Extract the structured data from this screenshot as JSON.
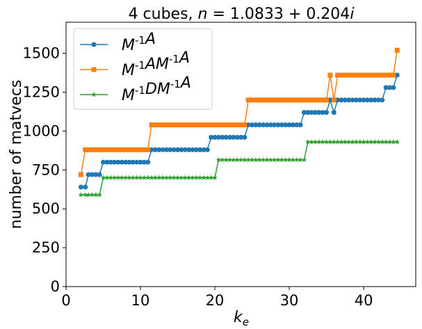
{
  "chart_data": {
    "type": "line",
    "title": "4 cubes, n = 1.0833 + 0.204i",
    "xlabel": "k_e",
    "ylabel": "number of matvecs",
    "xlim": [
      0,
      47
    ],
    "ylim": [
      0,
      1700
    ],
    "xticks": [
      0,
      10,
      20,
      30,
      40
    ],
    "yticks": [
      0,
      250,
      500,
      750,
      1000,
      1250,
      1500
    ],
    "legend": "top-left",
    "grid": false,
    "colors": {
      "s0": "#1f77b4",
      "s1": "#ff7f0e",
      "s2": "#2ca02c"
    },
    "series": [
      {
        "name": "M^{-1}A",
        "name_plain": "M−1A",
        "marker": "circle",
        "color": "#1f77b4",
        "x": [
          2.0,
          2.6,
          3.0,
          3.5,
          4.0,
          4.5,
          5.0,
          5.5,
          6.0,
          6.5,
          7.0,
          7.5,
          8.0,
          8.5,
          9.0,
          9.5,
          10.0,
          10.5,
          11.0,
          11.5,
          12.0,
          12.5,
          13.0,
          13.5,
          14.0,
          14.5,
          15.0,
          15.5,
          16.0,
          16.5,
          17.0,
          17.5,
          18.0,
          18.5,
          19.0,
          19.5,
          20.0,
          20.5,
          21.0,
          21.5,
          22.0,
          22.5,
          23.0,
          23.5,
          24.0,
          24.5,
          25.0,
          25.5,
          26.0,
          26.5,
          27.0,
          27.5,
          28.0,
          28.5,
          29.0,
          29.5,
          30.0,
          30.5,
          31.0,
          31.5,
          32.0,
          32.5,
          33.0,
          33.5,
          34.0,
          34.5,
          35.0,
          35.5,
          36.0,
          36.5,
          37.0,
          37.5,
          38.0,
          38.5,
          39.0,
          39.5,
          40.0,
          40.5,
          41.0,
          41.5,
          42.0,
          42.5,
          43.0,
          43.5,
          44.0,
          44.5
        ],
        "y": [
          640,
          640,
          720,
          720,
          720,
          720,
          800,
          800,
          800,
          800,
          800,
          800,
          800,
          800,
          800,
          800,
          800,
          800,
          800,
          880,
          880,
          880,
          880,
          880,
          880,
          880,
          880,
          880,
          880,
          880,
          880,
          880,
          880,
          880,
          880,
          960,
          960,
          960,
          960,
          960,
          960,
          960,
          960,
          960,
          960,
          1040,
          1040,
          1040,
          1040,
          1040,
          1040,
          1040,
          1040,
          1040,
          1040,
          1040,
          1040,
          1040,
          1040,
          1040,
          1120,
          1120,
          1120,
          1120,
          1120,
          1120,
          1120,
          1200,
          1120,
          1200,
          1200,
          1200,
          1200,
          1200,
          1200,
          1200,
          1200,
          1200,
          1200,
          1200,
          1200,
          1200,
          1280,
          1280,
          1280,
          1360
        ]
      },
      {
        "name": "M^{-1}AM^{-1}A",
        "name_plain": "M−1AM−1A",
        "marker": "square",
        "color": "#ff7f0e",
        "x": [
          2.0,
          2.6,
          3.0,
          3.5,
          4.0,
          4.5,
          5.0,
          5.5,
          6.0,
          6.5,
          7.0,
          7.5,
          8.0,
          8.5,
          9.0,
          9.5,
          10.0,
          10.5,
          11.0,
          11.5,
          12.0,
          12.5,
          13.0,
          13.5,
          14.0,
          14.5,
          15.0,
          15.5,
          16.0,
          16.5,
          17.0,
          17.5,
          18.0,
          18.5,
          19.0,
          19.5,
          20.0,
          20.5,
          21.0,
          21.5,
          22.0,
          22.5,
          23.0,
          23.5,
          24.0,
          24.5,
          25.0,
          25.5,
          26.0,
          26.5,
          27.0,
          27.5,
          28.0,
          28.5,
          29.0,
          29.5,
          30.0,
          30.5,
          31.0,
          31.5,
          32.0,
          32.5,
          33.0,
          33.5,
          34.0,
          34.5,
          35.0,
          35.5,
          36.0,
          36.5,
          37.0,
          37.5,
          38.0,
          38.5,
          39.0,
          39.5,
          40.0,
          40.5,
          41.0,
          41.5,
          42.0,
          42.5,
          43.0,
          43.5,
          44.0,
          44.5
        ],
        "y": [
          720,
          880,
          880,
          880,
          880,
          880,
          880,
          880,
          880,
          880,
          880,
          880,
          880,
          880,
          880,
          880,
          880,
          880,
          880,
          1040,
          1040,
          1040,
          1040,
          1040,
          1040,
          1040,
          1040,
          1040,
          1040,
          1040,
          1040,
          1040,
          1040,
          1040,
          1040,
          1040,
          1040,
          1040,
          1040,
          1040,
          1040,
          1040,
          1040,
          1040,
          1040,
          1200,
          1200,
          1200,
          1200,
          1200,
          1200,
          1200,
          1200,
          1200,
          1200,
          1200,
          1200,
          1200,
          1200,
          1200,
          1200,
          1200,
          1200,
          1200,
          1200,
          1200,
          1200,
          1360,
          1200,
          1360,
          1360,
          1360,
          1360,
          1360,
          1360,
          1360,
          1360,
          1360,
          1360,
          1360,
          1360,
          1360,
          1360,
          1360,
          1360,
          1520
        ]
      },
      {
        "name": "M^{-1}DM^{-1}A",
        "name_plain": "M−1DM−1A",
        "marker": "star",
        "color": "#2ca02c",
        "x": [
          2.0,
          2.6,
          3.0,
          3.5,
          4.0,
          4.5,
          5.0,
          5.5,
          6.0,
          6.5,
          7.0,
          7.5,
          8.0,
          8.5,
          9.0,
          9.5,
          10.0,
          10.5,
          11.0,
          11.5,
          12.0,
          12.5,
          13.0,
          13.5,
          14.0,
          14.5,
          15.0,
          15.5,
          16.0,
          16.5,
          17.0,
          17.5,
          18.0,
          18.5,
          19.0,
          19.5,
          20.0,
          20.5,
          21.0,
          21.5,
          22.0,
          22.5,
          23.0,
          23.5,
          24.0,
          24.5,
          25.0,
          25.5,
          26.0,
          26.5,
          27.0,
          27.5,
          28.0,
          28.5,
          29.0,
          29.5,
          30.0,
          30.5,
          31.0,
          31.5,
          32.0,
          32.5,
          33.0,
          33.5,
          34.0,
          34.5,
          35.0,
          35.5,
          36.0,
          36.5,
          37.0,
          37.5,
          38.0,
          38.5,
          39.0,
          39.5,
          40.0,
          40.5,
          41.0,
          41.5,
          42.0,
          42.5,
          43.0,
          43.5,
          44.0,
          44.5
        ],
        "y": [
          590,
          590,
          590,
          590,
          590,
          590,
          700,
          700,
          700,
          700,
          700,
          700,
          700,
          700,
          700,
          700,
          700,
          700,
          700,
          700,
          700,
          700,
          700,
          700,
          700,
          700,
          700,
          700,
          700,
          700,
          700,
          700,
          700,
          700,
          700,
          700,
          700,
          815,
          815,
          815,
          815,
          815,
          815,
          815,
          815,
          815,
          815,
          815,
          815,
          815,
          815,
          815,
          815,
          815,
          815,
          815,
          815,
          815,
          815,
          815,
          815,
          930,
          930,
          930,
          930,
          930,
          930,
          930,
          930,
          930,
          930,
          930,
          930,
          930,
          930,
          930,
          930,
          930,
          930,
          930,
          930,
          930,
          930,
          930,
          930,
          930
        ]
      }
    ]
  }
}
